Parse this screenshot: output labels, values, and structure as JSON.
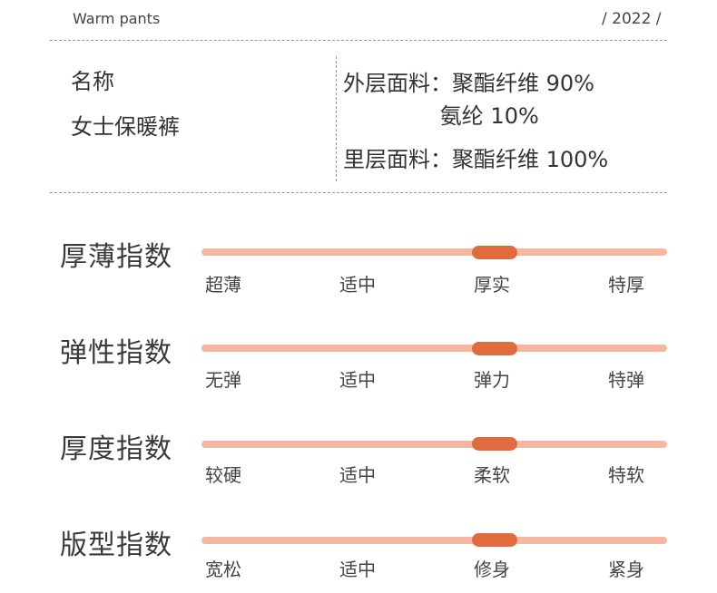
{
  "header": {
    "title": "Warm pants",
    "year": "/ 2022 /"
  },
  "product": {
    "name_label": "名称",
    "name_value": "女士保暖裤",
    "materials": [
      "外层面料：聚酯纤维 90%",
      "              氨纶 10%",
      "里层面料：聚酯纤维 100%"
    ]
  },
  "indices": [
    {
      "title": "厚薄指数",
      "ticks": [
        "超薄",
        "适中",
        "厚实",
        "特厚"
      ],
      "level": 0.63
    },
    {
      "title": "弹性指数",
      "ticks": [
        "无弹",
        "适中",
        "弹力",
        "特弹"
      ],
      "level": 0.63
    },
    {
      "title": "厚度指数",
      "ticks": [
        "较硬",
        "适中",
        "柔软",
        "特软"
      ],
      "level": 0.63
    },
    {
      "title": "版型指数",
      "ticks": [
        "宽松",
        "适中",
        "修身",
        "紧身"
      ],
      "level": 0.63
    }
  ],
  "colors": {
    "track": "#f5b79f",
    "knob": "#df6b3f",
    "text": "#3a3a3a"
  }
}
